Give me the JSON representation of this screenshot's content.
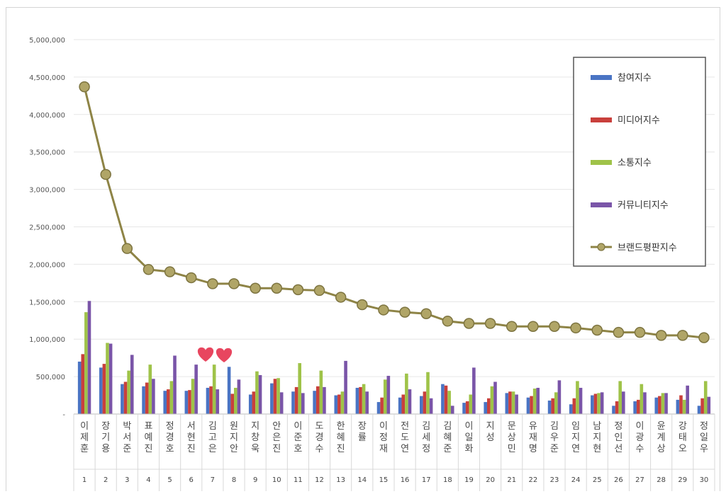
{
  "chart_data": {
    "type": "bar",
    "categories": [
      "이제훈",
      "장기용",
      "박서준",
      "표예진",
      "정경호",
      "서현진",
      "김고은",
      "원지안",
      "지창욱",
      "안은진",
      "이준호",
      "도경수",
      "한혜진",
      "장률",
      "이정재",
      "전도연",
      "김세정",
      "김혜준",
      "이일화",
      "지성",
      "문상민",
      "유재명",
      "김우준",
      "임지연",
      "남지현",
      "정인선",
      "이광수",
      "윤계상",
      "강태오",
      "정일우"
    ],
    "category_numbers": [
      "1",
      "2",
      "3",
      "4",
      "5",
      "6",
      "7",
      "8",
      "9",
      "10",
      "11",
      "12",
      "13",
      "14",
      "15",
      "16",
      "17",
      "18",
      "19",
      "20",
      "21",
      "22",
      "23",
      "24",
      "25",
      "26",
      "27",
      "28",
      "29",
      "30"
    ],
    "ylim": [
      0,
      5000000
    ],
    "yticks": [
      0,
      500000,
      1000000,
      1500000,
      2000000,
      2500000,
      3000000,
      3500000,
      4000000,
      4500000,
      5000000
    ],
    "ytick_labels": [
      "-",
      "500,000",
      "1,000,000",
      "1,500,000",
      "2,000,000",
      "2,500,000",
      "3,000,000",
      "3,500,000",
      "4,000,000",
      "4,500,000",
      "5,000,000"
    ],
    "grid": true,
    "legend_position": "top-right",
    "series": [
      {
        "name": "참여지수",
        "kind": "bar",
        "color": "#4a74c4",
        "values": [
          700000,
          620000,
          400000,
          370000,
          310000,
          310000,
          350000,
          630000,
          260000,
          410000,
          300000,
          310000,
          250000,
          350000,
          160000,
          220000,
          240000,
          400000,
          150000,
          160000,
          280000,
          220000,
          180000,
          130000,
          250000,
          110000,
          170000,
          220000,
          190000,
          110000
        ]
      },
      {
        "name": "미디어지수",
        "kind": "bar",
        "color": "#c9403c",
        "values": [
          800000,
          670000,
          430000,
          420000,
          330000,
          320000,
          370000,
          270000,
          300000,
          470000,
          360000,
          370000,
          260000,
          360000,
          220000,
          260000,
          300000,
          380000,
          170000,
          210000,
          300000,
          240000,
          210000,
          210000,
          270000,
          170000,
          190000,
          240000,
          250000,
          210000
        ]
      },
      {
        "name": "소통지수",
        "kind": "bar",
        "color": "#9fc349",
        "values": [
          1360000,
          950000,
          580000,
          660000,
          440000,
          470000,
          660000,
          350000,
          570000,
          480000,
          680000,
          580000,
          300000,
          400000,
          460000,
          540000,
          560000,
          310000,
          260000,
          370000,
          300000,
          340000,
          290000,
          440000,
          280000,
          440000,
          400000,
          280000,
          190000,
          440000
        ]
      },
      {
        "name": "커뮤니티지수",
        "kind": "bar",
        "color": "#7a55a8",
        "values": [
          1510000,
          940000,
          790000,
          470000,
          780000,
          660000,
          330000,
          460000,
          520000,
          290000,
          280000,
          360000,
          710000,
          300000,
          510000,
          330000,
          210000,
          110000,
          620000,
          430000,
          260000,
          350000,
          450000,
          350000,
          290000,
          300000,
          290000,
          280000,
          380000,
          230000
        ]
      },
      {
        "name": "브랜드평판지수",
        "kind": "line",
        "color": "#8e8446",
        "values": [
          4370000,
          3200000,
          2210000,
          1930000,
          1900000,
          1820000,
          1740000,
          1740000,
          1680000,
          1680000,
          1660000,
          1650000,
          1560000,
          1460000,
          1390000,
          1360000,
          1340000,
          1240000,
          1210000,
          1210000,
          1170000,
          1170000,
          1170000,
          1150000,
          1120000,
          1090000,
          1090000,
          1050000,
          1050000,
          1020000
        ]
      }
    ]
  }
}
